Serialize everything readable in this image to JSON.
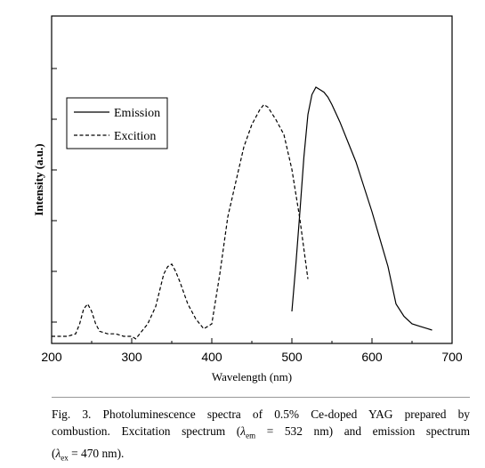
{
  "chart_data": {
    "type": "line",
    "xlabel": "Wavelength (nm)",
    "ylabel": "Intensity (a.u.)",
    "xlim": [
      200,
      700
    ],
    "ylim": [
      0,
      1
    ],
    "xticks": [
      200,
      300,
      400,
      500,
      600,
      700
    ],
    "xtick_labels": [
      "200",
      "300",
      "400",
      "500",
      "600",
      "700"
    ],
    "yticks_labeled": false,
    "grid": false,
    "legend_position": "top-left",
    "series": [
      {
        "name": "Emission",
        "style": "solid",
        "x": [
          500,
          505,
          510,
          515,
          520,
          525,
          530,
          535,
          540,
          545,
          550,
          560,
          570,
          580,
          590,
          600,
          610,
          620,
          630,
          640,
          650,
          660,
          670,
          675
        ],
        "y": [
          0.1,
          0.29,
          0.5,
          0.72,
          0.89,
          0.97,
          1.0,
          0.99,
          0.98,
          0.96,
          0.93,
          0.86,
          0.78,
          0.7,
          0.6,
          0.5,
          0.39,
          0.28,
          0.13,
          0.08,
          0.05,
          0.04,
          0.03,
          0.025
        ]
      },
      {
        "name": "Excition",
        "style": "dashed",
        "x": [
          200,
          210,
          220,
          230,
          235,
          240,
          245,
          250,
          255,
          260,
          270,
          280,
          290,
          300,
          305,
          310,
          320,
          330,
          340,
          345,
          350,
          355,
          360,
          370,
          380,
          390,
          400,
          410,
          420,
          430,
          440,
          450,
          460,
          465,
          470,
          480,
          490,
          500,
          510,
          520
        ],
        "y": [
          0.0,
          0.0,
          0.0,
          0.01,
          0.05,
          0.11,
          0.13,
          0.1,
          0.05,
          0.02,
          0.01,
          0.01,
          0.0,
          0.0,
          -0.01,
          0.01,
          0.05,
          0.12,
          0.25,
          0.28,
          0.29,
          0.26,
          0.22,
          0.13,
          0.07,
          0.03,
          0.05,
          0.25,
          0.48,
          0.62,
          0.76,
          0.85,
          0.91,
          0.93,
          0.92,
          0.87,
          0.81,
          0.67,
          0.47,
          0.23
        ]
      }
    ]
  },
  "caption": {
    "line1": "Fig. 3. Photoluminescence spectra of 0.5% Ce-doped YAG prepared by",
    "line2_pre": "combustion. Excitation spectrum (",
    "line2_sym1": "λ",
    "line2_sub1": "em",
    "line2_mid": " = 532 nm) and emission spectrum",
    "line3_pre": "(",
    "line3_sym": "λ",
    "line3_sub": "ex",
    "line3_post": " = 470 nm)."
  }
}
